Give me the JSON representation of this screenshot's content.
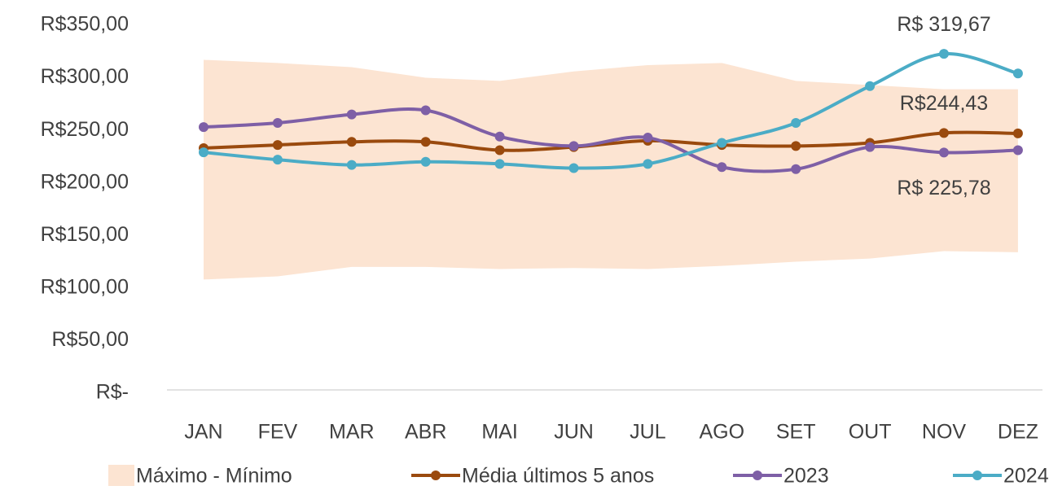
{
  "chart_data": {
    "type": "line",
    "categories": [
      "JAN",
      "FEV",
      "MAR",
      "ABR",
      "MAI",
      "JUN",
      "JUL",
      "AGO",
      "SET",
      "OUT",
      "NOV",
      "DEZ"
    ],
    "ylim": [
      0,
      350
    ],
    "yticks": [
      {
        "value": 0,
        "label": "R$-"
      },
      {
        "value": 50,
        "label": "R$50,00"
      },
      {
        "value": 100,
        "label": "R$100,00"
      },
      {
        "value": 150,
        "label": "R$150,00"
      },
      {
        "value": 200,
        "label": "R$200,00"
      },
      {
        "value": 250,
        "label": "R$250,00"
      },
      {
        "value": 300,
        "label": "R$300,00"
      },
      {
        "value": 350,
        "label": "R$350,00"
      }
    ],
    "series": [
      {
        "name": "Máximo - Mínimo",
        "kind": "band",
        "color": "#fce4d2",
        "values": [
          314,
          311,
          307,
          297,
          294,
          303,
          309,
          311,
          294,
          290,
          286,
          286
        ],
        "min_values": [
          105,
          108,
          117,
          117,
          115,
          116,
          115,
          118,
          122,
          125,
          132,
          131
        ]
      },
      {
        "name": "Média últimos 5 anos",
        "color": "#9a4a0e",
        "values": [
          230,
          233,
          236,
          236,
          228,
          231,
          237,
          233,
          232,
          235,
          244.43,
          244
        ],
        "value_labels": [
          null,
          null,
          null,
          null,
          null,
          null,
          null,
          null,
          null,
          null,
          "R$244,43",
          null
        ]
      },
      {
        "name": "2023",
        "color": "#7e5fa6",
        "values": [
          250,
          254,
          262,
          266,
          241,
          232,
          240,
          212,
          210,
          231,
          225.78,
          228
        ],
        "value_labels": [
          null,
          null,
          null,
          null,
          null,
          null,
          null,
          null,
          null,
          null,
          "R$ 225,78",
          null
        ]
      },
      {
        "name": "2024",
        "color": "#4bacc6",
        "values": [
          226,
          219,
          214,
          217,
          215,
          211,
          215,
          235,
          254,
          289,
          319.67,
          301
        ],
        "value_labels": [
          null,
          null,
          null,
          null,
          null,
          null,
          null,
          null,
          null,
          null,
          "R$ 319,67",
          null
        ]
      }
    ]
  }
}
